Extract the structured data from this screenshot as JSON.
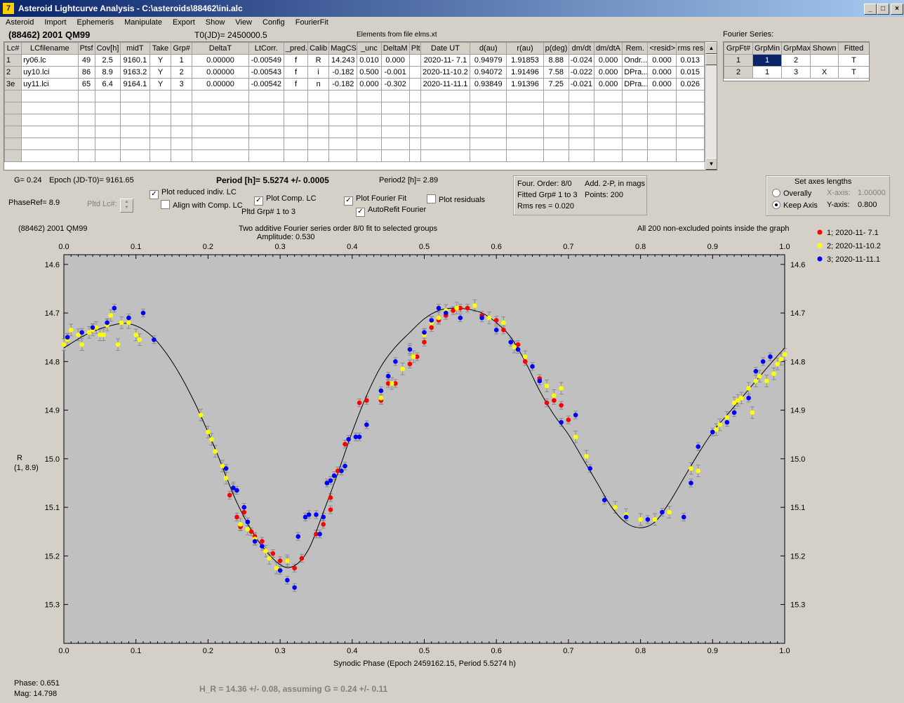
{
  "window": {
    "title": "Asteroid Lightcurve Analysis - C:\\asteroids\\88462\\ini.alc",
    "icon": "app-icon"
  },
  "menu": [
    "Asteroid",
    "Import",
    "Ephemeris",
    "Manipulate",
    "Export",
    "Show",
    "View",
    "Config",
    "FourierFit"
  ],
  "header": {
    "object": "(88462) 2001 QM99",
    "t0": "T0(JD)= 2450000.5",
    "elements": "Elements from file elms.xt"
  },
  "lc_table": {
    "columns": [
      "Lc#",
      "LCfilename",
      "Ptsf",
      "Cov[h]",
      "midT",
      "Take",
      "Grp#",
      "DeltaT",
      "LtCorr.",
      "_pred.",
      "Calib",
      "MagCS",
      "_unc",
      "DeltaM",
      "Plt",
      "Date UT",
      "d(au)",
      "r(au)",
      "p(deg)",
      "dm/dt",
      "dm/dtA",
      "Rem.",
      "<resid>",
      "rms res"
    ],
    "rows": [
      [
        "1",
        "ry06.lc",
        "49",
        "2.5",
        "9160.1",
        "Y",
        "1",
        "0.00000",
        "-0.00549",
        "f",
        "R",
        "14.243",
        "0.010",
        "0.000",
        "",
        "2020-11- 7.1",
        "0.94979",
        "1.91853",
        "8.88",
        "-0.024",
        "0.000",
        "Ondr...",
        "0.000",
        "0.013"
      ],
      [
        "2",
        "uy10.lci",
        "86",
        "8.9",
        "9163.2",
        "Y",
        "2",
        "0.00000",
        "-0.00543",
        "f",
        "i",
        "-0.182",
        "0.500",
        "-0.001",
        "",
        "2020-11-10.2",
        "0.94072",
        "1.91496",
        "7.58",
        "-0.022",
        "0.000",
        "DPra...",
        "0.000",
        "0.015"
      ],
      [
        "3e",
        "uy11.lci",
        "65",
        "6.4",
        "9164.1",
        "Y",
        "3",
        "0.00000",
        "-0.00542",
        "f",
        "n",
        "-0.182",
        "0.000",
        "-0.302",
        "",
        "2020-11-11.1",
        "0.93849",
        "1.91396",
        "7.25",
        "-0.021",
        "0.000",
        "DPra...",
        "0.000",
        "0.026"
      ]
    ]
  },
  "fourier_table": {
    "label": "Fourier Series:",
    "columns": [
      "GrpFt#",
      "GrpMin",
      "GrpMax",
      "Shown",
      "Fitted"
    ],
    "rows": [
      [
        "1",
        "1",
        "2",
        "",
        "T"
      ],
      [
        "2",
        "1",
        "3",
        "X",
        "T"
      ]
    ]
  },
  "info": {
    "g": "G= 0.24",
    "epoch": "Epoch (JD-T0)= 9161.65",
    "period": "Period [h]= 5.5274 +/- 0.0005",
    "period2": "Period2 [h]= 2.89",
    "phaseref": "PhaseRef= 8.9",
    "pltd_lc": "Pltd Lc#:",
    "cb_reduced": "Plot reduced indiv. LC",
    "cb_align": "Align with Comp. LC",
    "cb_comp": "Plot Comp. LC",
    "pltd_grp": "Pltd Grp#  1   to   3",
    "cb_fourier": "Plot Fourier Fit",
    "cb_autorefit": "AutoRefit Fourier",
    "cb_resid": "Plot residuals",
    "four_order": "Four. Order:  8/0",
    "add2p": "Add. 2-P, in mags",
    "fitted_grp": "Fitted Grp# 1 to 3",
    "points": "Points: 200",
    "rms": "Rms res     = 0.020"
  },
  "axes_box": {
    "title": "Set axes lengths",
    "opt1": "Overally",
    "opt2": "Keep Axis",
    "xaxis_label": "X-axis:",
    "xaxis_val": "1.00000",
    "yaxis_label": "Y-axis:",
    "yaxis_val": "0.800"
  },
  "plot_header": {
    "object": "(88462) 2001 QM99",
    "desc": "Two additive Fourier series order 8/0 fit to selected groups",
    "amplitude": "Amplitude: 0.530",
    "note": "All 200 non-excluded points inside the graph"
  },
  "chart_data": {
    "type": "scatter",
    "xlabel": "Synodic Phase (Epoch 2459162.15, Period 5.5274 h)",
    "ylabel": "R",
    "ylabel2": "(1, 8.9)",
    "xlim": [
      0,
      1
    ],
    "ylim": [
      15.38,
      14.58
    ],
    "x_ticks": [
      "0.0",
      "0.1",
      "0.2",
      "0.3",
      "0.4",
      "0.5",
      "0.6",
      "0.7",
      "0.8",
      "0.9",
      "1.0"
    ],
    "y_ticks": [
      "14.6",
      "14.7",
      "14.8",
      "14.9",
      "15.0",
      "15.1",
      "15.2",
      "15.3"
    ],
    "series": [
      {
        "name": "1; 2020-11- 7.1",
        "color": "#ff0000",
        "points": [
          [
            0.23,
            15.075
          ],
          [
            0.24,
            15.12
          ],
          [
            0.245,
            15.14
          ],
          [
            0.25,
            15.11
          ],
          [
            0.255,
            15.13
          ],
          [
            0.26,
            15.15
          ],
          [
            0.265,
            15.16
          ],
          [
            0.275,
            15.17
          ],
          [
            0.29,
            15.195
          ],
          [
            0.3,
            15.21
          ],
          [
            0.31,
            15.21
          ],
          [
            0.32,
            15.225
          ],
          [
            0.33,
            15.205
          ],
          [
            0.35,
            15.155
          ],
          [
            0.36,
            15.135
          ],
          [
            0.37,
            15.105
          ],
          [
            0.37,
            15.08
          ],
          [
            0.38,
            15.025
          ],
          [
            0.39,
            14.97
          ],
          [
            0.41,
            14.885
          ],
          [
            0.42,
            14.88
          ],
          [
            0.44,
            14.88
          ],
          [
            0.45,
            14.845
          ],
          [
            0.46,
            14.845
          ],
          [
            0.48,
            14.805
          ],
          [
            0.49,
            14.79
          ],
          [
            0.5,
            14.76
          ],
          [
            0.51,
            14.73
          ],
          [
            0.52,
            14.715
          ],
          [
            0.53,
            14.705
          ],
          [
            0.54,
            14.695
          ],
          [
            0.55,
            14.69
          ],
          [
            0.56,
            14.69
          ],
          [
            0.58,
            14.705
          ],
          [
            0.6,
            14.715
          ],
          [
            0.61,
            14.735
          ],
          [
            0.63,
            14.765
          ],
          [
            0.64,
            14.8
          ],
          [
            0.66,
            14.835
          ],
          [
            0.67,
            14.885
          ],
          [
            0.68,
            14.88
          ],
          [
            0.69,
            14.89
          ],
          [
            0.7,
            14.92
          ]
        ]
      },
      {
        "name": "2; 2020-11-10.2",
        "color": "#ffff00",
        "points": [
          [
            0.0,
            14.765
          ],
          [
            0.005,
            14.755
          ],
          [
            0.01,
            14.735
          ],
          [
            0.02,
            14.745
          ],
          [
            0.025,
            14.765
          ],
          [
            0.035,
            14.74
          ],
          [
            0.04,
            14.735
          ],
          [
            0.045,
            14.73
          ],
          [
            0.05,
            14.745
          ],
          [
            0.055,
            14.745
          ],
          [
            0.06,
            14.725
          ],
          [
            0.065,
            14.705
          ],
          [
            0.075,
            14.765
          ],
          [
            0.08,
            14.72
          ],
          [
            0.09,
            14.72
          ],
          [
            0.1,
            14.745
          ],
          [
            0.105,
            14.755
          ],
          [
            0.19,
            14.91
          ],
          [
            0.2,
            14.945
          ],
          [
            0.205,
            14.96
          ],
          [
            0.21,
            14.985
          ],
          [
            0.22,
            15.015
          ],
          [
            0.225,
            15.04
          ],
          [
            0.235,
            15.06
          ],
          [
            0.245,
            15.135
          ],
          [
            0.255,
            15.145
          ],
          [
            0.265,
            15.165
          ],
          [
            0.28,
            15.19
          ],
          [
            0.285,
            15.205
          ],
          [
            0.295,
            15.225
          ],
          [
            0.31,
            15.21
          ],
          [
            0.44,
            14.875
          ],
          [
            0.455,
            14.845
          ],
          [
            0.47,
            14.815
          ],
          [
            0.48,
            14.775
          ],
          [
            0.485,
            14.79
          ],
          [
            0.5,
            14.745
          ],
          [
            0.51,
            14.72
          ],
          [
            0.52,
            14.71
          ],
          [
            0.53,
            14.695
          ],
          [
            0.545,
            14.69
          ],
          [
            0.57,
            14.685
          ],
          [
            0.59,
            14.71
          ],
          [
            0.61,
            14.72
          ],
          [
            0.625,
            14.77
          ],
          [
            0.64,
            14.79
          ],
          [
            0.67,
            14.85
          ],
          [
            0.68,
            14.87
          ],
          [
            0.69,
            14.855
          ],
          [
            0.71,
            14.955
          ],
          [
            0.725,
            14.995
          ],
          [
            0.765,
            15.1
          ],
          [
            0.78,
            15.115
          ],
          [
            0.8,
            15.125
          ],
          [
            0.82,
            15.125
          ],
          [
            0.84,
            15.11
          ],
          [
            0.87,
            15.02
          ],
          [
            0.88,
            15.025
          ],
          [
            0.905,
            14.94
          ],
          [
            0.91,
            14.93
          ],
          [
            0.92,
            14.915
          ],
          [
            0.93,
            14.885
          ],
          [
            0.935,
            14.88
          ],
          [
            0.94,
            14.875
          ],
          [
            0.95,
            14.855
          ],
          [
            0.955,
            14.905
          ],
          [
            0.96,
            14.84
          ],
          [
            0.965,
            14.83
          ],
          [
            0.975,
            14.84
          ],
          [
            0.985,
            14.825
          ],
          [
            0.99,
            14.805
          ],
          [
            0.995,
            14.795
          ],
          [
            1.0,
            14.785
          ]
        ]
      },
      {
        "name": "3; 2020-11-11.1",
        "color": "#0000ff",
        "points": [
          [
            0.005,
            14.75
          ],
          [
            0.025,
            14.74
          ],
          [
            0.04,
            14.73
          ],
          [
            0.06,
            14.72
          ],
          [
            0.07,
            14.69
          ],
          [
            0.09,
            14.71
          ],
          [
            0.11,
            14.7
          ],
          [
            0.125,
            14.755
          ],
          [
            0.225,
            15.02
          ],
          [
            0.235,
            15.06
          ],
          [
            0.24,
            15.065
          ],
          [
            0.25,
            15.1
          ],
          [
            0.255,
            15.13
          ],
          [
            0.265,
            15.17
          ],
          [
            0.275,
            15.18
          ],
          [
            0.3,
            15.23
          ],
          [
            0.31,
            15.25
          ],
          [
            0.32,
            15.265
          ],
          [
            0.325,
            15.16
          ],
          [
            0.335,
            15.12
          ],
          [
            0.34,
            15.115
          ],
          [
            0.35,
            15.115
          ],
          [
            0.355,
            15.155
          ],
          [
            0.36,
            15.12
          ],
          [
            0.365,
            15.05
          ],
          [
            0.37,
            15.045
          ],
          [
            0.375,
            15.035
          ],
          [
            0.385,
            15.025
          ],
          [
            0.39,
            15.015
          ],
          [
            0.395,
            14.96
          ],
          [
            0.405,
            14.955
          ],
          [
            0.41,
            14.955
          ],
          [
            0.42,
            14.93
          ],
          [
            0.44,
            14.86
          ],
          [
            0.45,
            14.83
          ],
          [
            0.46,
            14.8
          ],
          [
            0.48,
            14.775
          ],
          [
            0.5,
            14.74
          ],
          [
            0.51,
            14.715
          ],
          [
            0.52,
            14.69
          ],
          [
            0.53,
            14.7
          ],
          [
            0.55,
            14.71
          ],
          [
            0.58,
            14.71
          ],
          [
            0.6,
            14.735
          ],
          [
            0.62,
            14.76
          ],
          [
            0.63,
            14.775
          ],
          [
            0.65,
            14.81
          ],
          [
            0.66,
            14.84
          ],
          [
            0.69,
            14.925
          ],
          [
            0.71,
            14.91
          ],
          [
            0.73,
            15.02
          ],
          [
            0.75,
            15.085
          ],
          [
            0.78,
            15.12
          ],
          [
            0.81,
            15.125
          ],
          [
            0.83,
            15.11
          ],
          [
            0.86,
            15.12
          ],
          [
            0.87,
            15.05
          ],
          [
            0.88,
            14.975
          ],
          [
            0.9,
            14.945
          ],
          [
            0.92,
            14.925
          ],
          [
            0.93,
            14.905
          ],
          [
            0.95,
            14.875
          ],
          [
            0.96,
            14.82
          ],
          [
            0.97,
            14.8
          ],
          [
            0.98,
            14.79
          ]
        ]
      }
    ],
    "fit_curve": [
      [
        0,
        14.772
      ],
      [
        0.03,
        14.745
      ],
      [
        0.06,
        14.728
      ],
      [
        0.09,
        14.722
      ],
      [
        0.12,
        14.745
      ],
      [
        0.15,
        14.8
      ],
      [
        0.18,
        14.88
      ],
      [
        0.21,
        14.98
      ],
      [
        0.24,
        15.09
      ],
      [
        0.27,
        15.17
      ],
      [
        0.3,
        15.218
      ],
      [
        0.32,
        15.22
      ],
      [
        0.34,
        15.185
      ],
      [
        0.36,
        15.11
      ],
      [
        0.38,
        15.03
      ],
      [
        0.4,
        14.945
      ],
      [
        0.42,
        14.87
      ],
      [
        0.44,
        14.81
      ],
      [
        0.46,
        14.77
      ],
      [
        0.48,
        14.74
      ],
      [
        0.5,
        14.712
      ],
      [
        0.52,
        14.695
      ],
      [
        0.54,
        14.69
      ],
      [
        0.56,
        14.692
      ],
      [
        0.58,
        14.7
      ],
      [
        0.6,
        14.72
      ],
      [
        0.62,
        14.75
      ],
      [
        0.64,
        14.8
      ],
      [
        0.66,
        14.86
      ],
      [
        0.68,
        14.91
      ],
      [
        0.7,
        14.95
      ],
      [
        0.72,
        15.0
      ],
      [
        0.74,
        15.05
      ],
      [
        0.76,
        15.1
      ],
      [
        0.78,
        15.132
      ],
      [
        0.8,
        15.142
      ],
      [
        0.82,
        15.13
      ],
      [
        0.84,
        15.09
      ],
      [
        0.86,
        15.04
      ],
      [
        0.88,
        14.99
      ],
      [
        0.9,
        14.945
      ],
      [
        0.92,
        14.91
      ],
      [
        0.94,
        14.875
      ],
      [
        0.96,
        14.84
      ],
      [
        0.98,
        14.805
      ],
      [
        1.0,
        14.772
      ]
    ]
  },
  "status": {
    "phase": "Phase:  0.651",
    "mag": "Mag:    14.798",
    "hr": "H_R = 14.36 +/- 0.08, assuming G = 0.24 +/- 0.11"
  }
}
